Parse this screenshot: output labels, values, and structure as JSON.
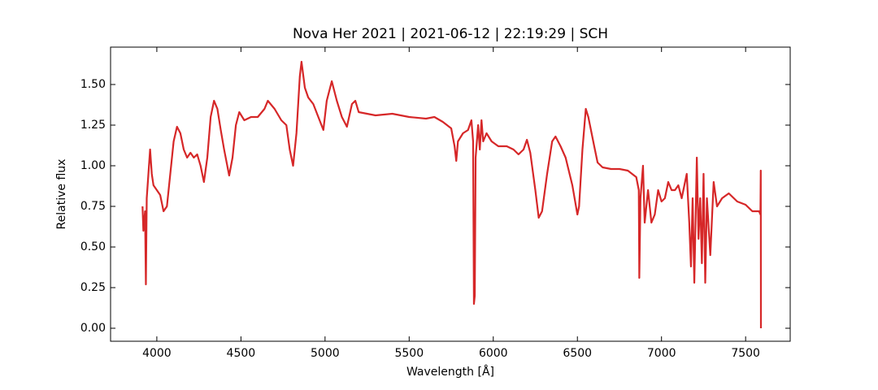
{
  "chart_data": {
    "type": "line",
    "title": "Nova Her 2021 | 2021-06-12 | 22:19:29 | SCH",
    "xlabel": "Wavelength [Å]",
    "ylabel": "Relative flux",
    "xlim": [
      3725,
      7765
    ],
    "ylim": [
      -0.08,
      1.73
    ],
    "xticks": [
      4000,
      4500,
      5000,
      5500,
      6000,
      6500,
      7000,
      7500
    ],
    "yticks": [
      {
        "value": 0,
        "label": "0.00"
      },
      {
        "value": 0.25,
        "label": "0.25"
      },
      {
        "value": 0.5,
        "label": "0.50"
      },
      {
        "value": 0.75,
        "label": "0.75"
      },
      {
        "value": 1,
        "label": "1.00"
      },
      {
        "value": 1.25,
        "label": "1.25"
      },
      {
        "value": 1.5,
        "label": "1.50"
      }
    ],
    "series": [
      {
        "color": "#d62728",
        "x": [
          3915,
          3920,
          3930,
          3935,
          3940,
          3950,
          3960,
          3970,
          3980,
          4000,
          4020,
          4040,
          4060,
          4080,
          4100,
          4120,
          4140,
          4160,
          4180,
          4200,
          4220,
          4240,
          4260,
          4280,
          4300,
          4320,
          4340,
          4360,
          4380,
          4400,
          4430,
          4450,
          4470,
          4490,
          4520,
          4560,
          4600,
          4640,
          4660,
          4700,
          4740,
          4770,
          4790,
          4810,
          4830,
          4850,
          4860,
          4880,
          4900,
          4930,
          4960,
          4990,
          5010,
          5040,
          5070,
          5100,
          5130,
          5160,
          5180,
          5200,
          5300,
          5400,
          5500,
          5600,
          5650,
          5700,
          5750,
          5770,
          5780,
          5790,
          5820,
          5850,
          5870,
          5880,
          5885,
          5890,
          5895,
          5910,
          5920,
          5930,
          5940,
          5960,
          5990,
          6030,
          6080,
          6120,
          6150,
          6180,
          6200,
          6220,
          6250,
          6270,
          6290,
          6320,
          6350,
          6370,
          6400,
          6430,
          6470,
          6500,
          6510,
          6530,
          6550,
          6565,
          6600,
          6620,
          6650,
          6700,
          6750,
          6800,
          6850,
          6865,
          6868,
          6875,
          6890,
          6900,
          6920,
          6940,
          6960,
          6980,
          7000,
          7020,
          7040,
          7060,
          7080,
          7100,
          7120,
          7150,
          7165,
          7175,
          7185,
          7195,
          7210,
          7220,
          7230,
          7240,
          7250,
          7260,
          7270,
          7290,
          7310,
          7330,
          7360,
          7400,
          7450,
          7500,
          7540,
          7580,
          7588,
          7590,
          7591
        ],
        "values": [
          0.75,
          0.6,
          0.72,
          0.27,
          0.8,
          0.95,
          1.1,
          0.95,
          0.88,
          0.85,
          0.82,
          0.72,
          0.75,
          0.95,
          1.15,
          1.24,
          1.2,
          1.1,
          1.05,
          1.08,
          1.05,
          1.07,
          1.0,
          0.9,
          1.05,
          1.3,
          1.4,
          1.35,
          1.22,
          1.1,
          0.94,
          1.05,
          1.25,
          1.33,
          1.28,
          1.3,
          1.3,
          1.35,
          1.4,
          1.35,
          1.28,
          1.25,
          1.1,
          1.0,
          1.2,
          1.55,
          1.64,
          1.48,
          1.42,
          1.38,
          1.3,
          1.22,
          1.4,
          1.52,
          1.4,
          1.3,
          1.24,
          1.38,
          1.4,
          1.33,
          1.31,
          1.32,
          1.3,
          1.29,
          1.3,
          1.27,
          1.23,
          1.12,
          1.03,
          1.15,
          1.2,
          1.22,
          1.28,
          1.15,
          0.15,
          0.2,
          1.05,
          1.25,
          1.1,
          1.28,
          1.15,
          1.2,
          1.15,
          1.12,
          1.12,
          1.1,
          1.07,
          1.1,
          1.16,
          1.08,
          0.85,
          0.68,
          0.72,
          0.95,
          1.15,
          1.18,
          1.12,
          1.05,
          0.88,
          0.7,
          0.75,
          1.1,
          1.35,
          1.3,
          1.12,
          1.02,
          0.99,
          0.98,
          0.98,
          0.97,
          0.93,
          0.85,
          0.31,
          0.8,
          1.0,
          0.65,
          0.85,
          0.65,
          0.7,
          0.85,
          0.78,
          0.8,
          0.9,
          0.85,
          0.85,
          0.88,
          0.8,
          0.95,
          0.65,
          0.38,
          0.8,
          0.28,
          1.05,
          0.55,
          0.8,
          0.4,
          0.95,
          0.28,
          0.8,
          0.45,
          0.9,
          0.75,
          0.8,
          0.83,
          0.78,
          0.76,
          0.72,
          0.72,
          0.7,
          0.97,
          0.0
        ]
      }
    ]
  }
}
